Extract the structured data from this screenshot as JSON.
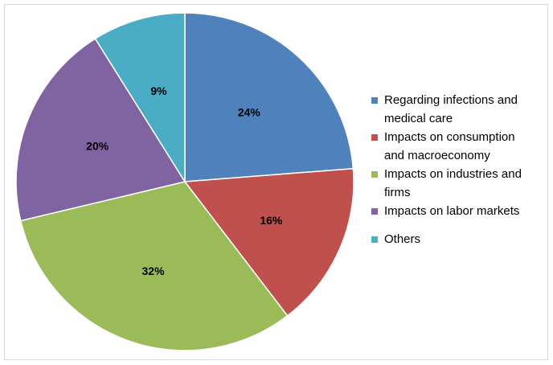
{
  "chart_data": {
    "type": "pie",
    "title": "",
    "start_angle_deg": 0,
    "direction": "clockwise",
    "legend_position": "right",
    "slices": [
      {
        "label": "Regarding infections and medical care",
        "value": 24,
        "display": "24%",
        "color": "#4f81bd"
      },
      {
        "label": "Impacts on consumption and macroeconomy",
        "value": 16,
        "display": "16%",
        "color": "#c0504d"
      },
      {
        "label": "Impacts on industries and firms",
        "value": 32,
        "display": "32%",
        "color": "#9bbb59"
      },
      {
        "label": "Impacts on labor markets",
        "value": 20,
        "display": "20%",
        "color": "#8064a2"
      },
      {
        "label": "Others",
        "value": 9,
        "display": "9%",
        "color": "#4bacc6"
      }
    ]
  },
  "legend": {
    "items": [
      {
        "line1": "Regarding infections and",
        "line2": "medical care",
        "color": "#4f81bd"
      },
      {
        "line1": "Impacts on consumption",
        "line2": "and macroeconomy",
        "color": "#c0504d"
      },
      {
        "line1": "Impacts on industries and",
        "line2": "firms",
        "color": "#9bbb59"
      },
      {
        "line1": "Impacts on labor markets",
        "line2": "",
        "color": "#8064a2"
      },
      {
        "line1": "Others",
        "line2": "",
        "color": "#4bacc6"
      }
    ]
  }
}
